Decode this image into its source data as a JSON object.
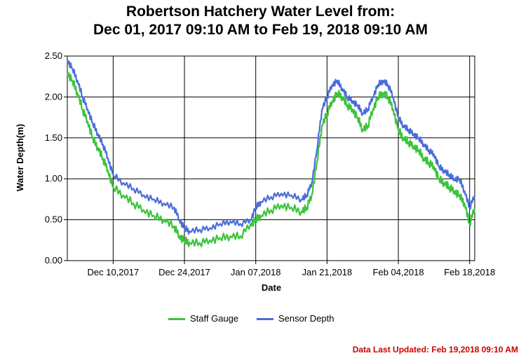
{
  "title_line1": "Robertson Hatchery Water Level from:",
  "title_line2": "Dec 01, 2017 09:10 AM to Feb 19, 2018 09:10 AM",
  "footer": {
    "updated_text": "Data Last Updated: Feb 19,2018 09:10 AM",
    "updated_color": "#cc0000"
  },
  "colors": {
    "staff_gauge": "#3cc43c",
    "sensor_depth": "#4a6ddb",
    "grid": "#000000"
  },
  "chart_data": {
    "type": "line",
    "title": "Robertson Hatchery Water Level from: Dec 01, 2017 09:10 AM to Feb 19, 2018 09:10 AM",
    "xlabel": "Date",
    "ylabel": "Water Depth(m)",
    "x_start": "2017-12-01",
    "x_end": "2018-02-19",
    "x_ticks": [
      "Dec 10,2017",
      "Dec 24,2017",
      "Jan 07,2018",
      "Jan 21,2018",
      "Feb 04,2018",
      "Feb 18,2018"
    ],
    "x_tick_dates": [
      "2017-12-10",
      "2017-12-24",
      "2018-01-07",
      "2018-01-21",
      "2018-02-04",
      "2018-02-18"
    ],
    "ylim": [
      0,
      2.5
    ],
    "y_ticks": [
      "0.00",
      "0.50",
      "1.00",
      "1.50",
      "2.00",
      "2.50"
    ],
    "grid": true,
    "legend_position": "bottom",
    "series": [
      {
        "name": "Staff Gauge",
        "color": "#3cc43c",
        "x": [
          "2017-12-01",
          "2017-12-02",
          "2017-12-03",
          "2017-12-04",
          "2017-12-05",
          "2017-12-06",
          "2017-12-07",
          "2017-12-08",
          "2017-12-09",
          "2017-12-10",
          "2017-12-12",
          "2017-12-14",
          "2017-12-16",
          "2017-12-18",
          "2017-12-20",
          "2017-12-22",
          "2017-12-23",
          "2017-12-24",
          "2017-12-25",
          "2017-12-27",
          "2017-12-29",
          "2017-12-31",
          "2018-01-02",
          "2018-01-04",
          "2018-01-06",
          "2018-01-07",
          "2018-01-08",
          "2018-01-10",
          "2018-01-12",
          "2018-01-14",
          "2018-01-16",
          "2018-01-17",
          "2018-01-18",
          "2018-01-19",
          "2018-01-20",
          "2018-01-21",
          "2018-01-22",
          "2018-01-23",
          "2018-01-24",
          "2018-01-25",
          "2018-01-26",
          "2018-01-27",
          "2018-01-28",
          "2018-01-29",
          "2018-01-30",
          "2018-01-31",
          "2018-02-01",
          "2018-02-02",
          "2018-02-03",
          "2018-02-04",
          "2018-02-05",
          "2018-02-06",
          "2018-02-07",
          "2018-02-08",
          "2018-02-09",
          "2018-02-10",
          "2018-02-11",
          "2018-02-12",
          "2018-02-13",
          "2018-02-14",
          "2018-02-15",
          "2018-02-16",
          "2018-02-17",
          "2018-02-18",
          "2018-02-19"
        ],
        "values": [
          2.3,
          2.2,
          2.05,
          1.85,
          1.7,
          1.5,
          1.38,
          1.25,
          1.1,
          0.9,
          0.8,
          0.7,
          0.62,
          0.55,
          0.5,
          0.42,
          0.3,
          0.25,
          0.22,
          0.22,
          0.25,
          0.28,
          0.3,
          0.3,
          0.45,
          0.5,
          0.55,
          0.62,
          0.68,
          0.65,
          0.6,
          0.65,
          0.8,
          1.2,
          1.65,
          1.8,
          1.95,
          2.05,
          2.0,
          1.9,
          1.85,
          1.75,
          1.6,
          1.65,
          1.85,
          2.0,
          2.05,
          2.0,
          1.85,
          1.6,
          1.5,
          1.45,
          1.4,
          1.35,
          1.25,
          1.2,
          1.15,
          1.0,
          0.95,
          0.9,
          0.85,
          0.8,
          0.7,
          0.45,
          0.65
        ]
      },
      {
        "name": "Sensor Depth",
        "color": "#4a6ddb",
        "x": [
          "2017-12-01",
          "2017-12-02",
          "2017-12-03",
          "2017-12-04",
          "2017-12-05",
          "2017-12-06",
          "2017-12-07",
          "2017-12-08",
          "2017-12-09",
          "2017-12-10",
          "2017-12-12",
          "2017-12-14",
          "2017-12-16",
          "2017-12-18",
          "2017-12-20",
          "2017-12-22",
          "2017-12-23",
          "2017-12-24",
          "2017-12-25",
          "2017-12-27",
          "2017-12-29",
          "2017-12-31",
          "2018-01-02",
          "2018-01-04",
          "2018-01-06",
          "2018-01-07",
          "2018-01-08",
          "2018-01-10",
          "2018-01-12",
          "2018-01-14",
          "2018-01-16",
          "2018-01-17",
          "2018-01-18",
          "2018-01-19",
          "2018-01-20",
          "2018-01-21",
          "2018-01-22",
          "2018-01-23",
          "2018-01-24",
          "2018-01-25",
          "2018-01-26",
          "2018-01-27",
          "2018-01-28",
          "2018-01-29",
          "2018-01-30",
          "2018-01-31",
          "2018-02-01",
          "2018-02-02",
          "2018-02-03",
          "2018-02-04",
          "2018-02-05",
          "2018-02-06",
          "2018-02-07",
          "2018-02-08",
          "2018-02-09",
          "2018-02-10",
          "2018-02-11",
          "2018-02-12",
          "2018-02-13",
          "2018-02-14",
          "2018-02-15",
          "2018-02-16",
          "2018-02-17",
          "2018-02-18",
          "2018-02-19"
        ],
        "values": [
          2.45,
          2.35,
          2.2,
          2.0,
          1.85,
          1.68,
          1.55,
          1.42,
          1.25,
          1.05,
          0.95,
          0.88,
          0.8,
          0.75,
          0.7,
          0.65,
          0.5,
          0.4,
          0.36,
          0.38,
          0.4,
          0.45,
          0.48,
          0.45,
          0.5,
          0.65,
          0.72,
          0.78,
          0.82,
          0.8,
          0.75,
          0.8,
          0.95,
          1.35,
          1.85,
          2.0,
          2.15,
          2.2,
          2.1,
          2.0,
          1.95,
          1.9,
          1.8,
          1.85,
          2.0,
          2.15,
          2.2,
          2.15,
          2.0,
          1.75,
          1.65,
          1.6,
          1.55,
          1.5,
          1.42,
          1.35,
          1.3,
          1.15,
          1.1,
          1.05,
          1.0,
          1.0,
          0.85,
          0.65,
          0.8
        ]
      }
    ]
  }
}
